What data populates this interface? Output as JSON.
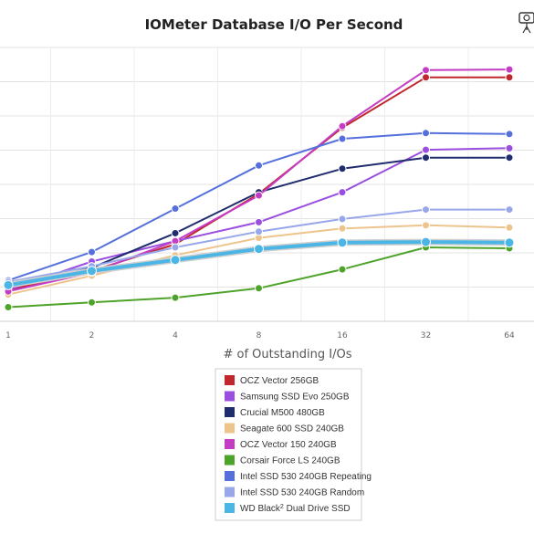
{
  "chart_data": {
    "type": "line",
    "title": "IOMeter Database I/O Per Second",
    "xlabel": "# of Outstanding I/Os",
    "ylabel": "",
    "x": [
      1,
      2,
      4,
      8,
      16,
      32,
      64
    ],
    "x_scale": "log2",
    "x_ticks": [
      "1",
      "2",
      "4",
      "8",
      "16",
      "32",
      "64"
    ],
    "y_grid_count": 8,
    "grid": true,
    "legend_position": "bottom",
    "series": [
      {
        "name": "OCZ Vector 256GB",
        "color": "#c0282d",
        "values": [
          1.0,
          1.6,
          2.45,
          4.05,
          6.15,
          7.75,
          7.75
        ]
      },
      {
        "name": "Samsung SSD Evo 250GB",
        "color": "#9b4fe0",
        "values": [
          1.0,
          1.9,
          2.55,
          3.15,
          4.1,
          5.45,
          5.5
        ]
      },
      {
        "name": "Crucial M500 480GB",
        "color": "#1f2d6e",
        "values": [
          1.1,
          1.7,
          2.8,
          4.1,
          4.85,
          5.2,
          5.2
        ]
      },
      {
        "name": "Seagate 600 SSD 240GB",
        "color": "#eec48d",
        "values": [
          0.85,
          1.45,
          2.1,
          2.65,
          2.95,
          3.05,
          2.98
        ]
      },
      {
        "name": "OCZ Vector 150 240GB",
        "color": "#c43cc4",
        "values": [
          0.95,
          1.55,
          2.55,
          4.0,
          6.2,
          7.98,
          8.0
        ]
      },
      {
        "name": "Corsair Force LS 240GB",
        "color": "#4ea32a",
        "values": [
          0.45,
          0.6,
          0.75,
          1.05,
          1.65,
          2.35,
          2.32
        ]
      },
      {
        "name": "Intel SSD 530 240GB Repeating",
        "color": "#5570dc",
        "values": [
          1.3,
          2.2,
          3.58,
          4.95,
          5.8,
          5.98,
          5.95
        ]
      },
      {
        "name": "Intel SSD 530 240GB Random",
        "color": "#98a6ea",
        "values": [
          1.25,
          1.75,
          2.35,
          2.85,
          3.25,
          3.55,
          3.55
        ]
      },
      {
        "name": "WD Black² Dual Drive SSD",
        "color": "#4bb6e6",
        "values": [
          1.15,
          1.6,
          1.95,
          2.3,
          2.5,
          2.52,
          2.5
        ]
      }
    ],
    "ylim": [
      0,
      8.7
    ]
  },
  "legend_display": [
    {
      "prefix": "OCZ Vector 256GB",
      "sup": "",
      "suffix": ""
    },
    {
      "prefix": "Samsung SSD Evo 250GB",
      "sup": "",
      "suffix": ""
    },
    {
      "prefix": "Crucial M500 480GB",
      "sup": "",
      "suffix": ""
    },
    {
      "prefix": "Seagate 600 SSD 240GB",
      "sup": "",
      "suffix": ""
    },
    {
      "prefix": "OCZ Vector 150 240GB",
      "sup": "",
      "suffix": ""
    },
    {
      "prefix": "Corsair Force LS 240GB",
      "sup": "",
      "suffix": ""
    },
    {
      "prefix": "Intel SSD 530 240GB Repeating",
      "sup": "",
      "suffix": ""
    },
    {
      "prefix": "Intel SSD 530 240GB Random",
      "sup": "",
      "suffix": ""
    },
    {
      "prefix": "WD Black",
      "sup": "2",
      "suffix": " Dual Drive SSD"
    }
  ],
  "logo_icon": "tripod-camera-icon"
}
